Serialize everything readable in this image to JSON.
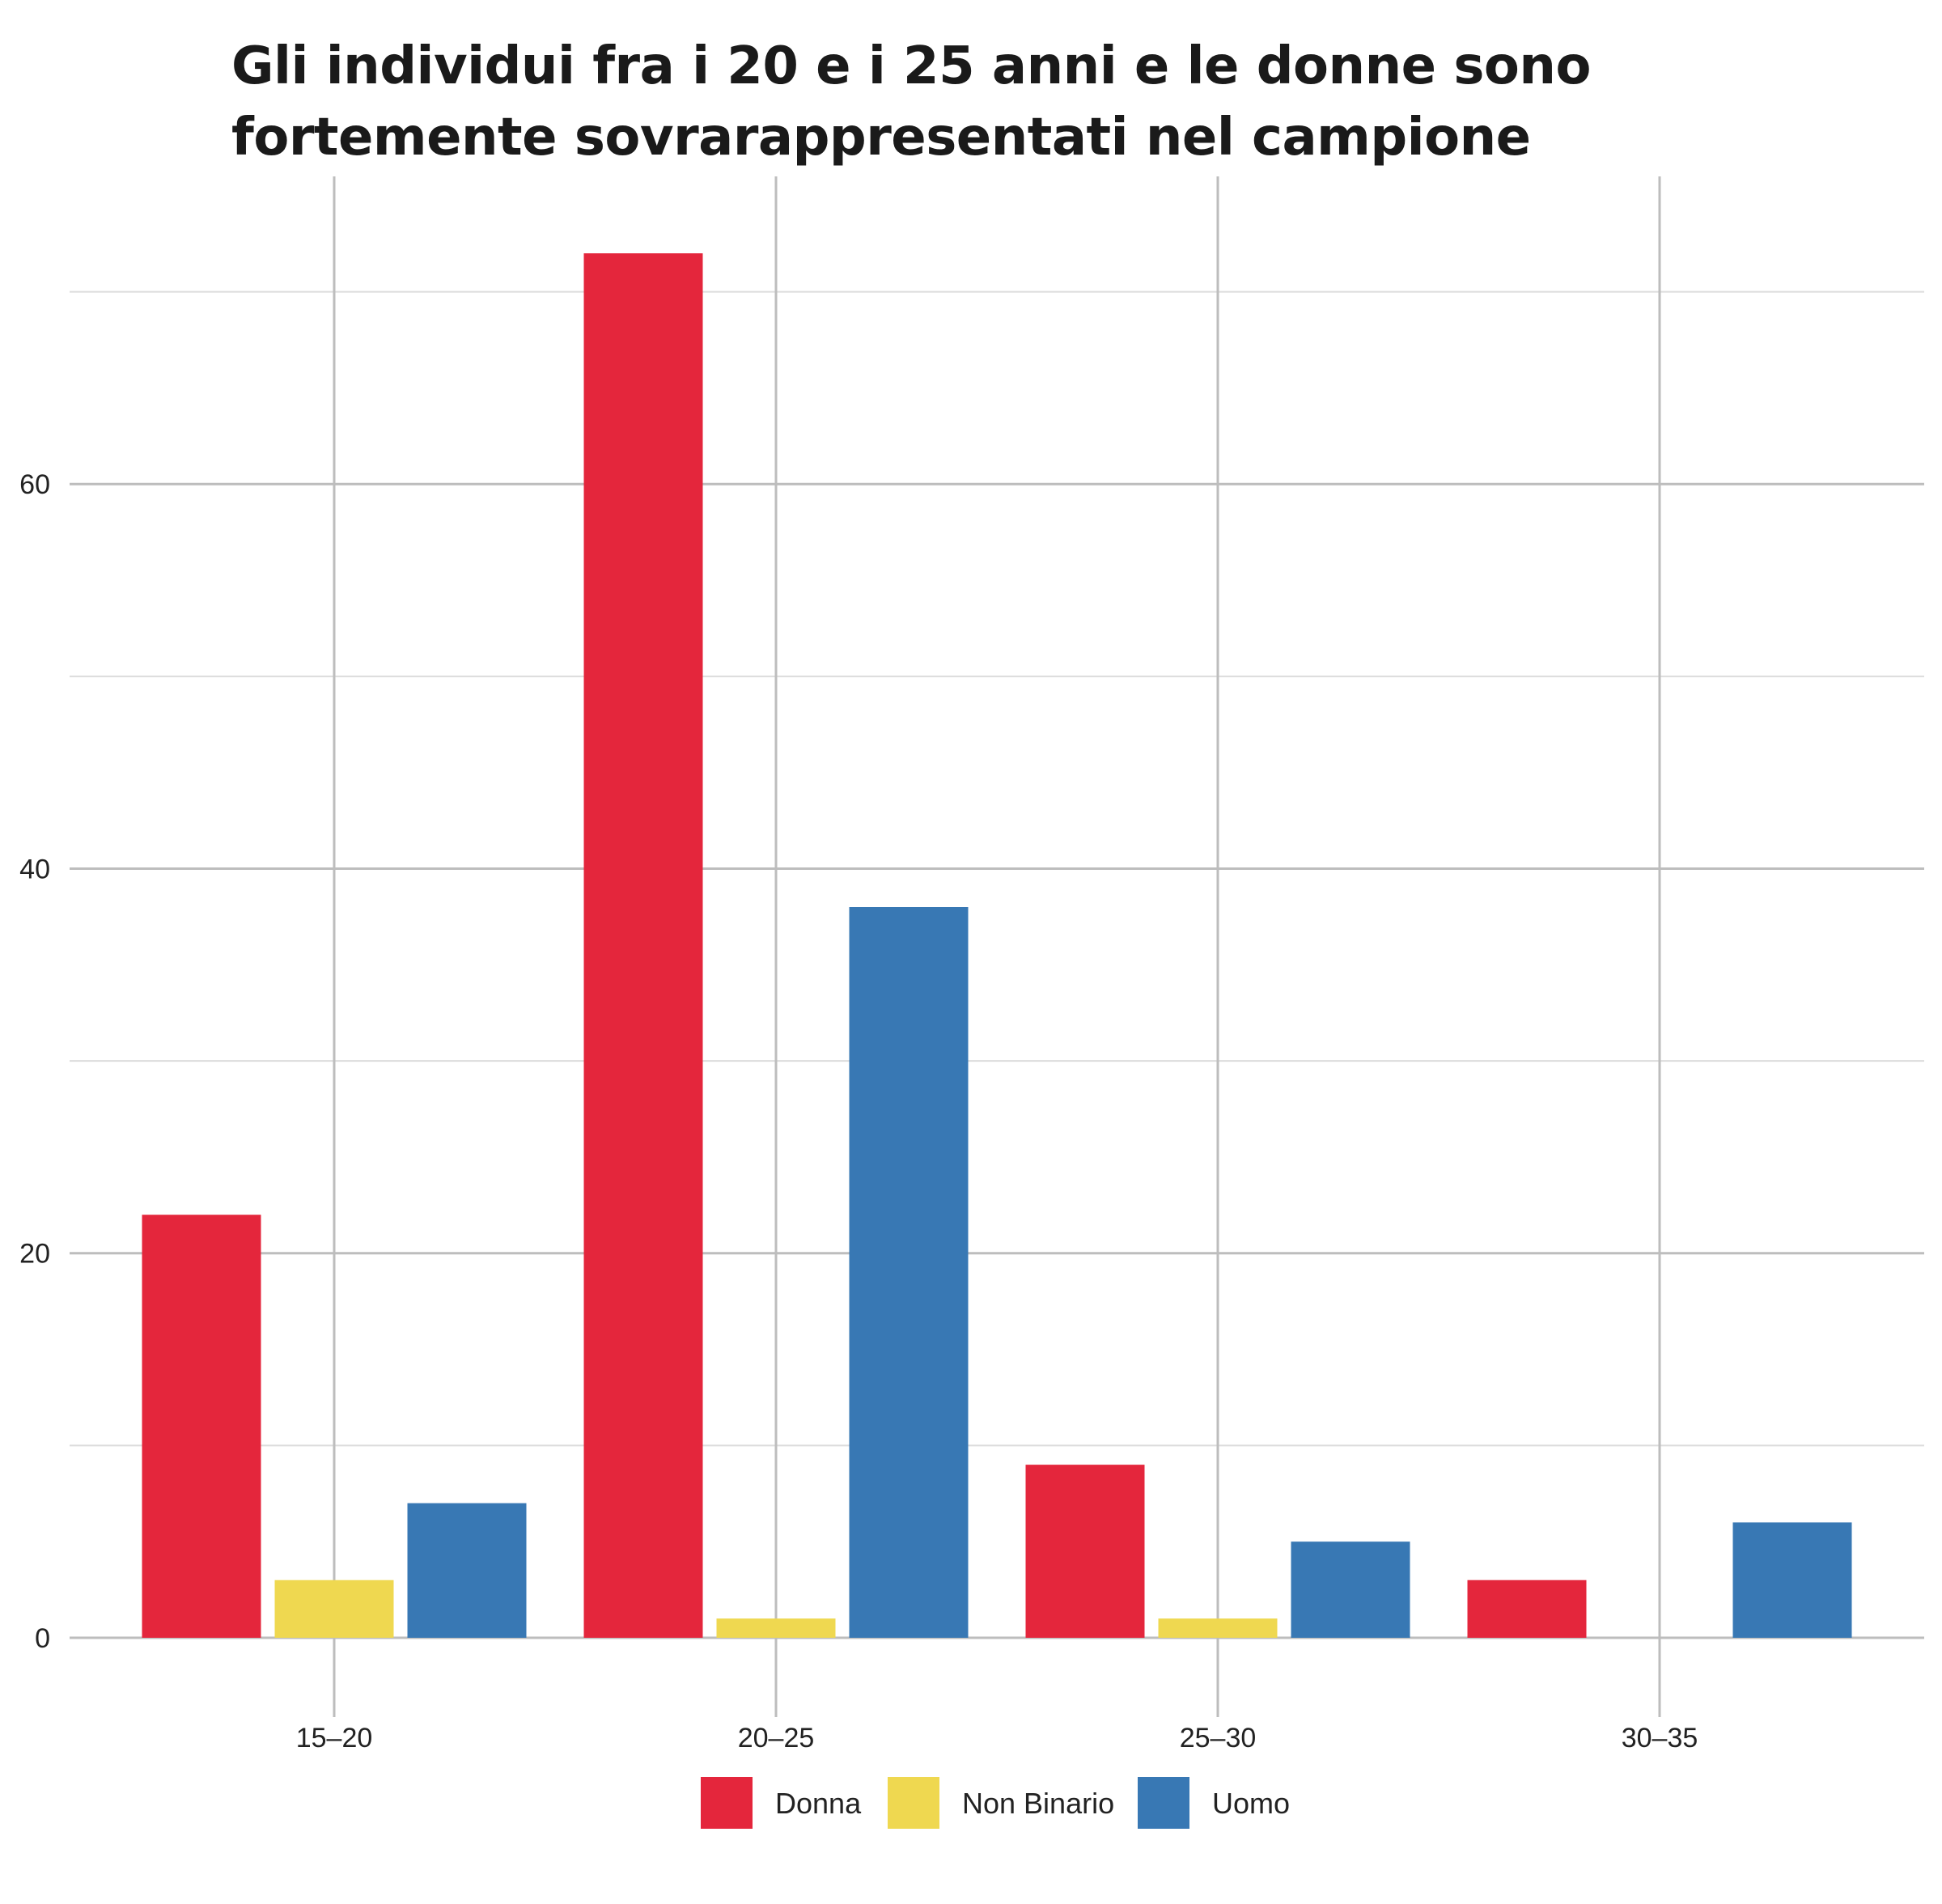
{
  "chart_data": {
    "type": "bar",
    "title": "Gli individui fra i 20 e i 25 anni e le donne sono fortemente sovrarappresentati nel campione",
    "xlabel": "",
    "ylabel": "",
    "categories": [
      "15–20",
      "20–25",
      "25–30",
      "30–35"
    ],
    "series": [
      {
        "name": "Donna",
        "color": "#e4263c",
        "values": [
          22,
          72,
          9,
          3
        ]
      },
      {
        "name": "Non Binario",
        "color": "#efd850",
        "values": [
          3,
          1,
          1,
          null
        ]
      },
      {
        "name": "Uomo",
        "color": "#3878b4",
        "values": [
          7,
          38,
          5,
          6
        ]
      }
    ],
    "ylim": [
      0,
      76
    ],
    "y_ticks": [
      0,
      20,
      40,
      60
    ],
    "y_minor_ticks": [
      10,
      30,
      50,
      70
    ],
    "grid": true,
    "legend_position": "bottom"
  }
}
